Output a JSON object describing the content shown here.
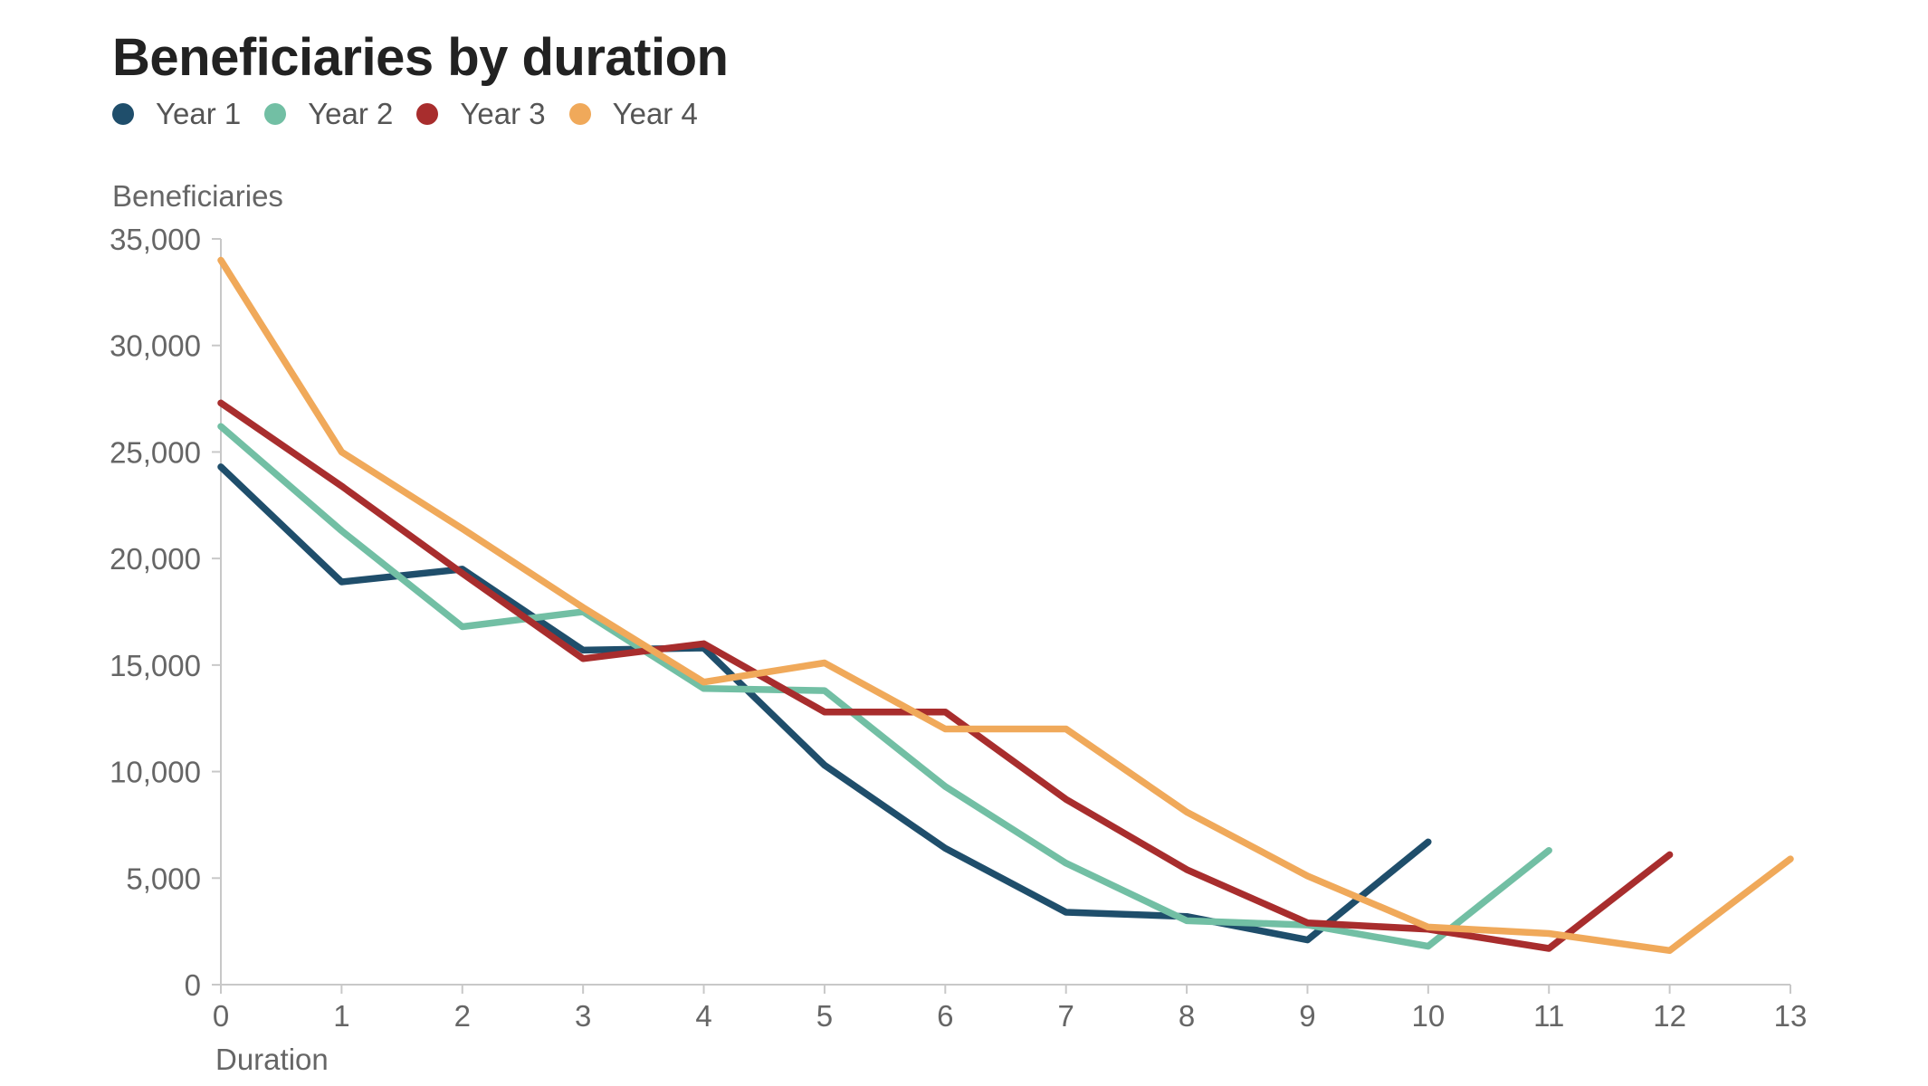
{
  "chart_data": {
    "type": "line",
    "title": "Beneficiaries by duration",
    "xlabel": "Duration",
    "ylabel": "Beneficiaries",
    "xlim": [
      0,
      13
    ],
    "ylim": [
      0,
      35000
    ],
    "x_ticks": [
      "0",
      "1",
      "2",
      "3",
      "4",
      "5",
      "6",
      "7",
      "8",
      "9",
      "10",
      "11",
      "12",
      "13"
    ],
    "y_ticks": [
      "0",
      "5,000",
      "10,000",
      "15,000",
      "20,000",
      "25,000",
      "30,000",
      "35,000"
    ],
    "grid": false,
    "legend_position": "top-left",
    "series": [
      {
        "name": "Year 1",
        "color": "#1f4e6b",
        "x": [
          0,
          1,
          2,
          3,
          4,
          5,
          6,
          7,
          8,
          9,
          10
        ],
        "values": [
          24300,
          18900,
          19500,
          15700,
          15800,
          10300,
          6400,
          3400,
          3200,
          2100,
          6700
        ]
      },
      {
        "name": "Year 2",
        "color": "#72bfa4",
        "x": [
          0,
          1,
          2,
          3,
          4,
          5,
          6,
          7,
          8,
          9,
          10,
          11
        ],
        "values": [
          26200,
          21300,
          16800,
          17500,
          13900,
          13800,
          9300,
          5700,
          3000,
          2800,
          1800,
          6300
        ]
      },
      {
        "name": "Year 3",
        "color": "#a82d2d",
        "x": [
          0,
          1,
          2,
          3,
          4,
          5,
          6,
          7,
          8,
          9,
          10,
          11,
          12
        ],
        "values": [
          27300,
          23400,
          19300,
          15300,
          16000,
          12800,
          12800,
          8700,
          5400,
          2900,
          2600,
          1700,
          6100
        ]
      },
      {
        "name": "Year 4",
        "color": "#f0a95a",
        "x": [
          0,
          1,
          2,
          3,
          4,
          5,
          6,
          7,
          8,
          9,
          10,
          11,
          12,
          13
        ],
        "values": [
          34000,
          25000,
          21400,
          17700,
          14200,
          15100,
          12000,
          12000,
          8100,
          5100,
          2700,
          2400,
          1600,
          5900
        ]
      }
    ]
  }
}
